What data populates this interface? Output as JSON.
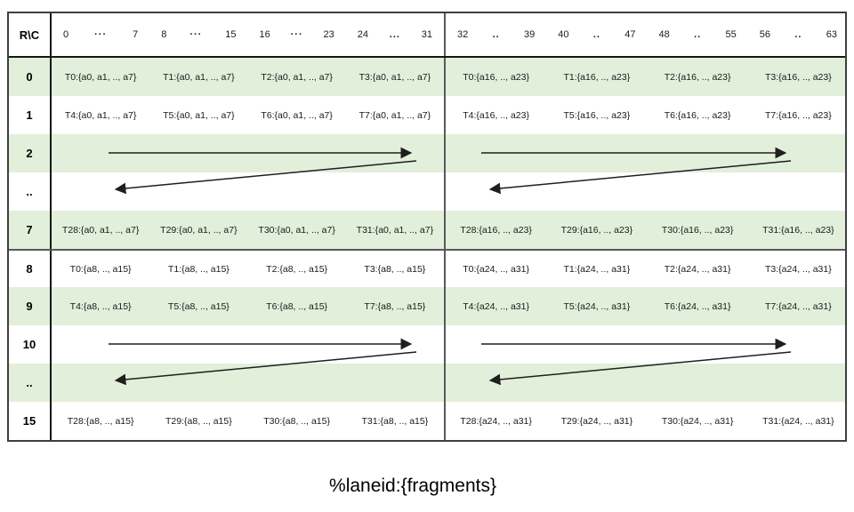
{
  "table": {
    "corner_label": "R\\C",
    "column_groups": [
      {
        "start": "0",
        "dots": "···",
        "end": "7"
      },
      {
        "start": "8",
        "dots": "···",
        "end": "15"
      },
      {
        "start": "16",
        "dots": "···",
        "end": "23"
      },
      {
        "start": "24",
        "dots": "...",
        "end": "31"
      },
      {
        "start": "32",
        "dots": "..",
        "end": "39"
      },
      {
        "start": "40",
        "dots": "..",
        "end": "47"
      },
      {
        "start": "48",
        "dots": "..",
        "end": "55"
      },
      {
        "start": "56",
        "dots": "..",
        "end": "63"
      }
    ],
    "rows": [
      {
        "label": "0",
        "type": "data",
        "cells": [
          "T0:{a0, a1, .., a7}",
          "T1:{a0, a1, .., a7}",
          "T2:{a0, a1, .., a7}",
          "T3:{a0, a1, .., a7}",
          "T0:{a16, .., a23}",
          "T1:{a16, .., a23}",
          "T2:{a16, .., a23}",
          "T3:{a16, .., a23}"
        ]
      },
      {
        "label": "1",
        "type": "data",
        "cells": [
          "T4:{a0, a1, .., a7}",
          "T5:{a0, a1, .., a7}",
          "T6:{a0, a1, .., a7}",
          "T7:{a0, a1, .., a7}",
          "T4:{a16, .., a23}",
          "T5:{a16, .., a23}",
          "T6:{a16, .., a23}",
          "T7:{a16, .., a23}"
        ]
      },
      {
        "label": "2",
        "type": "arrow_forward"
      },
      {
        "label": "..",
        "type": "arrow_return"
      },
      {
        "label": "7",
        "type": "data",
        "cells": [
          "T28:{a0, a1, .., a7}",
          "T29:{a0, a1, .., a7}",
          "T30:{a0, a1, .., a7}",
          "T31:{a0, a1, .., a7}",
          "T28:{a16, .., a23}",
          "T29:{a16, .., a23}",
          "T30:{a16, .., a23}",
          "T31:{a16, .., a23}"
        ]
      },
      {
        "label": "8",
        "type": "data",
        "cells": [
          "T0:{a8, .., a15}",
          "T1:{a8, .., a15}",
          "T2:{a8, .., a15}",
          "T3:{a8, .., a15}",
          "T0:{a24, .., a31}",
          "T1:{a24, .., a31}",
          "T2:{a24, .., a31}",
          "T3:{a24, .., a31}"
        ]
      },
      {
        "label": "9",
        "type": "data",
        "cells": [
          "T4:{a8, .., a15}",
          "T5:{a8, .., a15}",
          "T6:{a8, .., a15}",
          "T7:{a8, .., a15}",
          "T4:{a24, .., a31}",
          "T5:{a24, .., a31}",
          "T6:{a24, .., a31}",
          "T7:{a24, .., a31}"
        ]
      },
      {
        "label": "10",
        "type": "arrow_forward"
      },
      {
        "label": "..",
        "type": "arrow_return"
      },
      {
        "label": "15",
        "type": "data",
        "cells": [
          "T28:{a8, .., a15}",
          "T29:{a8, .., a15}",
          "T30:{a8, .., a15}",
          "T31:{a8, .., a15}",
          "T28:{a24, .., a31}",
          "T29:{a24, .., a31}",
          "T30:{a24, .., a31}",
          "T31:{a24, .., a31}"
        ]
      }
    ]
  },
  "caption": "%laneid:{fragments}",
  "colors": {
    "band_green": "#e2efda",
    "border_dark": "#3f3f3f",
    "divider_gray": "#595959",
    "arrow": "#1f1f1f"
  }
}
